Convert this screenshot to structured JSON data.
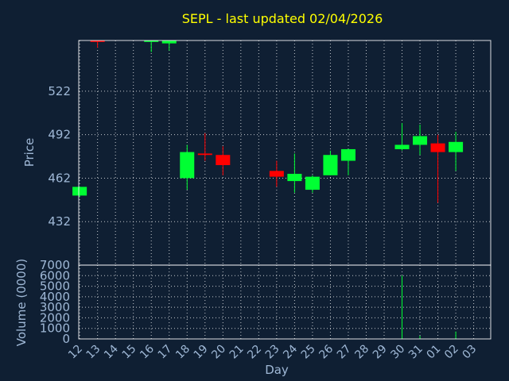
{
  "chart_data": [
    {
      "type": "candlestick",
      "title": "SEPL - last updated 02/04/2026",
      "ylabel": "Price",
      "xlabel": "",
      "ylim": [
        402,
        557
      ],
      "yticks": [
        432,
        462,
        492,
        522
      ],
      "grid": true,
      "colors": {
        "up": "#00ff33",
        "down": "#ff0000"
      },
      "x_categories": [
        "12",
        "13",
        "14",
        "15",
        "16",
        "17",
        "18",
        "19",
        "20",
        "21",
        "22",
        "23",
        "24",
        "25",
        "26",
        "27",
        "28",
        "29",
        "30",
        "31",
        "01",
        "02",
        "03"
      ],
      "candles": [
        {
          "day": "12",
          "open": 450,
          "close": 456,
          "low": 449,
          "high": 456
        },
        {
          "day": "13",
          "open": 560,
          "close": 556,
          "low": 552,
          "high": 567
        },
        {
          "day": "16",
          "open": 556,
          "close": 559,
          "low": 549,
          "high": 570
        },
        {
          "day": "17",
          "open": 555,
          "close": 560,
          "low": 550,
          "high": 562
        },
        {
          "day": "18",
          "open": 462,
          "close": 480,
          "low": 454,
          "high": 485
        },
        {
          "day": "19",
          "open": 479,
          "close": 478,
          "low": 474,
          "high": 493
        },
        {
          "day": "20",
          "open": 478,
          "close": 471,
          "low": 464,
          "high": 484
        },
        {
          "day": "23",
          "open": 467,
          "close": 463,
          "low": 456,
          "high": 474
        },
        {
          "day": "24",
          "open": 460,
          "close": 465,
          "low": 452,
          "high": 479
        },
        {
          "day": "25",
          "open": 454,
          "close": 463,
          "low": 452,
          "high": 464
        },
        {
          "day": "26",
          "open": 464,
          "close": 478,
          "low": 464,
          "high": 481
        },
        {
          "day": "27",
          "open": 474,
          "close": 482,
          "low": 464,
          "high": 482
        },
        {
          "day": "30",
          "open": 482,
          "close": 485,
          "low": 481,
          "high": 500
        },
        {
          "day": "31",
          "open": 485,
          "close": 491,
          "low": 478,
          "high": 499
        },
        {
          "day": "01",
          "open": 486,
          "close": 480,
          "low": 445,
          "high": 492
        },
        {
          "day": "02",
          "open": 480,
          "close": 487,
          "low": 467,
          "high": 494
        }
      ]
    },
    {
      "type": "bar",
      "ylabel": "Volume (0000)",
      "xlabel": "Day",
      "ylim": [
        0,
        7000
      ],
      "yticks": [
        0,
        1000,
        2000,
        3000,
        4000,
        5000,
        6000,
        7000
      ],
      "grid": true,
      "color": "#00ff33",
      "categories": [
        "12",
        "13",
        "14",
        "15",
        "16",
        "17",
        "18",
        "19",
        "20",
        "21",
        "22",
        "23",
        "24",
        "25",
        "26",
        "27",
        "28",
        "29",
        "30",
        "31",
        "01",
        "02",
        "03"
      ],
      "values": [
        0,
        0,
        0,
        0,
        0,
        0,
        0,
        0,
        0,
        0,
        0,
        0,
        0,
        0,
        0,
        0,
        0,
        0,
        6000,
        300,
        0,
        700,
        0
      ]
    }
  ]
}
